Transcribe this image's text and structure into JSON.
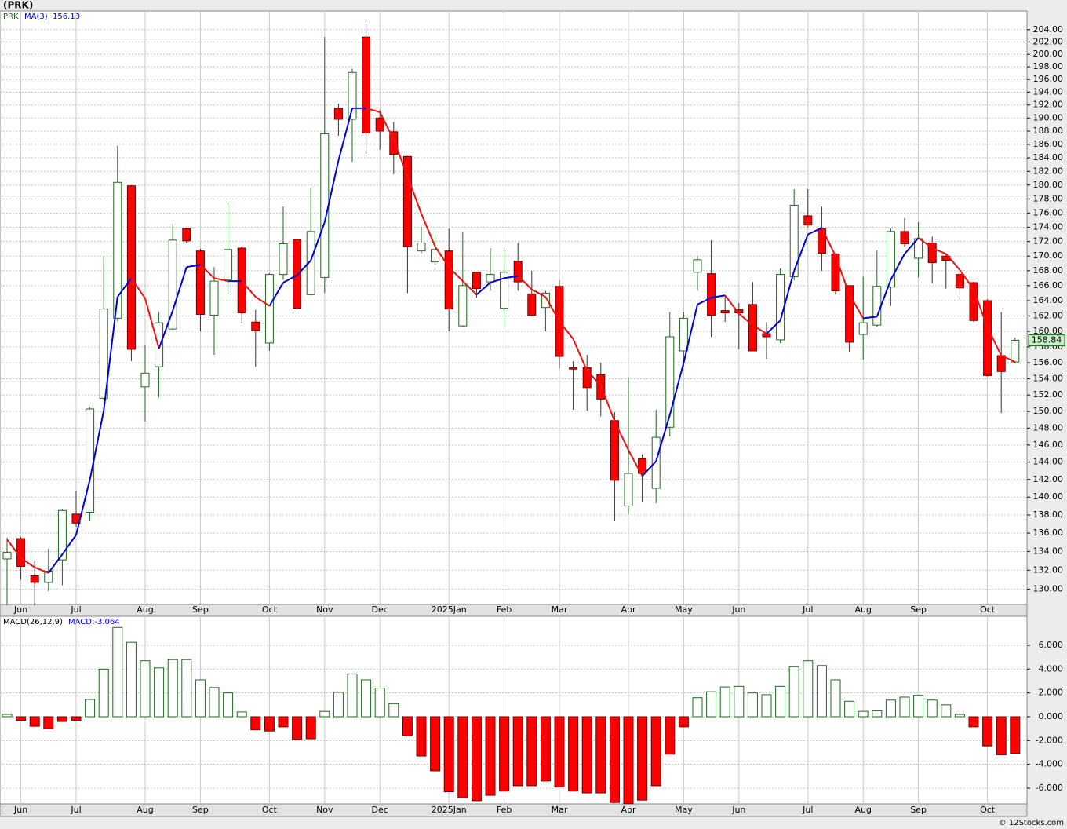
{
  "chart_data": [
    {
      "type": "candlestick",
      "title": "(PRK)",
      "name": "PRK",
      "log_scale": true,
      "grid": true,
      "up_color": "#1a6b1a",
      "down_color": "#ff0000",
      "x_labels": [
        "Jun",
        "Jul",
        "Aug",
        "Sep",
        "Oct",
        "Nov",
        "Dec",
        "2025Jan",
        "Feb",
        "Mar",
        "Apr",
        "May",
        "Jun",
        "Jul",
        "Aug",
        "Sep",
        "Oct"
      ],
      "open": [
        133.2,
        135.4,
        131.4,
        130.7,
        133.1,
        138.1,
        138.3,
        151.6,
        161.7,
        179.9,
        153.0,
        155.5,
        160.3,
        173.8,
        170.7,
        162.1,
        166.8,
        171.1,
        161.2,
        158.5,
        167.5,
        172.3,
        164.8,
        167.1,
        191.5,
        189.8,
        202.8,
        190.0,
        187.9,
        184.2,
        170.7,
        169.2,
        170.7,
        160.7,
        167.8,
        166.5,
        163.0,
        169.3,
        164.9,
        163.1,
        165.9,
        155.4,
        155.4,
        154.5,
        148.9,
        139.0,
        144.4,
        141.0,
        148.1,
        157.5,
        167.8,
        167.6,
        162.7,
        162.8,
        163.5,
        159.7,
        158.9,
        167.2,
        175.6,
        173.8,
        170.3,
        166.0,
        159.6,
        160.8,
        165.8,
        173.4,
        169.7,
        171.8,
        170.0,
        167.5,
        166.4,
        164.0,
        156.9,
        156.1
      ],
      "high": [
        135.5,
        135.6,
        133.0,
        134.3,
        138.7,
        140.7,
        150.5,
        170.0,
        185.8,
        180.0,
        158.2,
        162.5,
        174.5,
        173.9,
        171.0,
        168.5,
        177.5,
        171.3,
        162.8,
        167.7,
        176.9,
        172.4,
        179.6,
        202.8,
        192.2,
        197.7,
        204.9,
        191.2,
        189.4,
        184.3,
        174.0,
        173.0,
        173.8,
        173.3,
        167.8,
        171.1,
        170.8,
        171.8,
        168.0,
        165.3,
        166.7,
        156.2,
        157.0,
        156.0,
        149.9,
        154.1,
        144.9,
        150.2,
        162.5,
        162.5,
        170.0,
        172.2,
        164.7,
        163.7,
        166.5,
        161.2,
        168.3,
        179.4,
        179.4,
        176.9,
        170.4,
        166.0,
        167.2,
        170.8,
        173.8,
        175.3,
        174.7,
        172.7,
        170.4,
        167.9,
        166.5,
        164.2,
        162.5,
        159.2
      ],
      "low": [
        128.3,
        131.0,
        128.3,
        129.8,
        130.4,
        136.7,
        137.3,
        151.4,
        161.3,
        156.2,
        148.8,
        151.7,
        160.2,
        171.8,
        160.0,
        157.0,
        164.8,
        161.0,
        155.5,
        157.5,
        166.8,
        162.8,
        164.7,
        165.0,
        187.3,
        183.4,
        184.6,
        185.2,
        181.6,
        165.0,
        170.4,
        168.8,
        160.0,
        160.6,
        164.4,
        165.3,
        160.6,
        165.3,
        162.0,
        160.0,
        155.3,
        150.2,
        150.1,
        149.4,
        137.3,
        138.1,
        139.4,
        139.3,
        147.0,
        155.5,
        165.3,
        159.3,
        161.2,
        157.7,
        157.5,
        156.5,
        158.5,
        166.7,
        174.0,
        168.0,
        164.8,
        157.4,
        156.4,
        160.6,
        163.3,
        171.3,
        167.1,
        166.3,
        165.6,
        164.2,
        161.2,
        154.3,
        149.8,
        155.9
      ],
      "close": [
        133.9,
        132.4,
        130.7,
        131.9,
        138.5,
        137.1,
        150.3,
        162.9,
        180.4,
        157.7,
        154.7,
        161.1,
        172.2,
        172.1,
        162.2,
        166.6,
        170.9,
        162.4,
        160.1,
        167.5,
        171.7,
        163.0,
        173.4,
        187.6,
        189.8,
        197.1,
        187.7,
        188.0,
        184.5,
        171.3,
        171.8,
        170.9,
        162.9,
        166.0,
        165.6,
        167.5,
        167.8,
        166.5,
        162.1,
        165.0,
        156.8,
        155.2,
        152.9,
        151.5,
        141.9,
        142.7,
        142.7,
        146.9,
        159.3,
        161.7,
        169.5,
        162.1,
        162.4,
        162.4,
        157.5,
        159.3,
        167.5,
        177.1,
        174.3,
        170.4,
        165.3,
        158.6,
        161.1,
        165.9,
        173.4,
        171.7,
        172.4,
        169.1,
        169.4,
        165.7,
        161.4,
        154.4,
        154.9,
        158.84
      ],
      "ma": {
        "name": "MA(3)",
        "up_color": "#0000dd",
        "down_color": "#ee1111",
        "values": [
          135.3,
          133.3,
          132.3,
          131.7,
          133.7,
          135.8,
          142.0,
          150.1,
          164.5,
          167.0,
          164.3,
          157.8,
          162.7,
          168.5,
          168.8,
          167.0,
          166.6,
          166.6,
          164.5,
          163.3,
          166.4,
          167.4,
          169.4,
          174.7,
          183.6,
          191.5,
          191.5,
          190.9,
          186.7,
          181.3,
          175.9,
          171.3,
          168.5,
          166.6,
          164.8,
          166.4,
          167.0,
          167.3,
          165.5,
          164.5,
          161.3,
          159.0,
          155.0,
          153.2,
          148.8,
          145.4,
          142.4,
          144.1,
          149.6,
          156.0,
          163.5,
          164.4,
          164.7,
          162.3,
          160.8,
          159.7,
          161.4,
          168.0,
          173.0,
          173.9,
          170.0,
          164.8,
          161.7,
          161.9,
          166.8,
          170.3,
          172.5,
          171.1,
          170.3,
          168.1,
          165.5,
          160.5,
          156.9,
          156.13
        ]
      },
      "ylim": [
        128.4,
        207.1
      ],
      "yticks": [
        {
          "value": 130,
          "label": "130.00"
        },
        {
          "value": 132,
          "label": "132.00"
        },
        {
          "value": 134,
          "label": "134.00"
        },
        {
          "value": 136,
          "label": "136.00"
        },
        {
          "value": 138,
          "label": "138.00"
        },
        {
          "value": 140,
          "label": "140.00"
        },
        {
          "value": 142,
          "label": "142.00"
        },
        {
          "value": 144,
          "label": "144.00"
        },
        {
          "value": 146,
          "label": "146.00"
        },
        {
          "value": 148,
          "label": "148.00"
        },
        {
          "value": 150,
          "label": "150.00"
        },
        {
          "value": 152,
          "label": "152.00"
        },
        {
          "value": 154,
          "label": "154.00"
        },
        {
          "value": 156,
          "label": "156.00"
        },
        {
          "value": 158,
          "label": "158.00"
        },
        {
          "value": 160,
          "label": "160.00"
        },
        {
          "value": 162,
          "label": "162.00"
        },
        {
          "value": 164,
          "label": "164.00"
        },
        {
          "value": 166,
          "label": "166.00"
        },
        {
          "value": 168,
          "label": "168.00"
        },
        {
          "value": 170,
          "label": "170.00"
        },
        {
          "value": 172,
          "label": "172.00"
        },
        {
          "value": 174,
          "label": "174.00"
        },
        {
          "value": 176,
          "label": "176.00"
        },
        {
          "value": 178,
          "label": "178.00"
        },
        {
          "value": 180,
          "label": "180.00"
        },
        {
          "value": 182,
          "label": "182.00"
        },
        {
          "value": 184,
          "label": "184.00"
        },
        {
          "value": 186,
          "label": "186.00"
        },
        {
          "value": 188,
          "label": "188.00"
        },
        {
          "value": 190,
          "label": "190.00"
        },
        {
          "value": 192,
          "label": "192.00"
        },
        {
          "value": 194,
          "label": "194.00"
        },
        {
          "value": 196,
          "label": "196.00"
        },
        {
          "value": 198,
          "label": "198.00"
        },
        {
          "value": 200,
          "label": "200.00"
        },
        {
          "value": 202,
          "label": "202.00"
        },
        {
          "value": 204,
          "label": "204.00"
        }
      ]
    },
    {
      "type": "bar",
      "title": "MACD(26,12,9)",
      "legend_label": "MACD:-3.064",
      "positive_color": "#1a6b1a",
      "negative_color": "#ff0000",
      "values": [
        0.2,
        -0.3,
        -0.8,
        -1.0,
        -0.4,
        -0.3,
        1.45,
        4.0,
        7.5,
        6.25,
        4.7,
        4.1,
        4.8,
        4.8,
        3.1,
        2.45,
        2.0,
        0.4,
        -1.1,
        -1.2,
        -0.85,
        -1.9,
        -1.85,
        0.45,
        2.05,
        3.6,
        3.1,
        2.4,
        1.1,
        -1.6,
        -3.3,
        -4.55,
        -6.3,
        -6.8,
        -7.05,
        -6.6,
        -6.25,
        -5.8,
        -5.8,
        -5.4,
        -5.9,
        -6.25,
        -6.4,
        -6.4,
        -7.2,
        -7.3,
        -7.0,
        -5.8,
        -3.15,
        -0.85,
        1.6,
        2.1,
        2.5,
        2.55,
        2.0,
        1.85,
        2.55,
        4.2,
        4.7,
        4.3,
        3.1,
        1.3,
        0.45,
        0.5,
        1.4,
        1.65,
        1.8,
        1.4,
        1.0,
        0.2,
        -0.85,
        -2.45,
        -3.2,
        -3.064
      ],
      "ylim": [
        -7.32,
        8.44
      ],
      "yticks": [
        {
          "value": -6,
          "label": "-6.000"
        },
        {
          "value": -4,
          "label": "-4.000"
        },
        {
          "value": -2,
          "label": "-2.000"
        },
        {
          "value": 0,
          "label": "0.000"
        },
        {
          "value": 2,
          "label": "2.000"
        },
        {
          "value": 4,
          "label": "4.000"
        },
        {
          "value": 6,
          "label": "6.000"
        }
      ]
    }
  ],
  "copyright": "© 12Stocks.com"
}
